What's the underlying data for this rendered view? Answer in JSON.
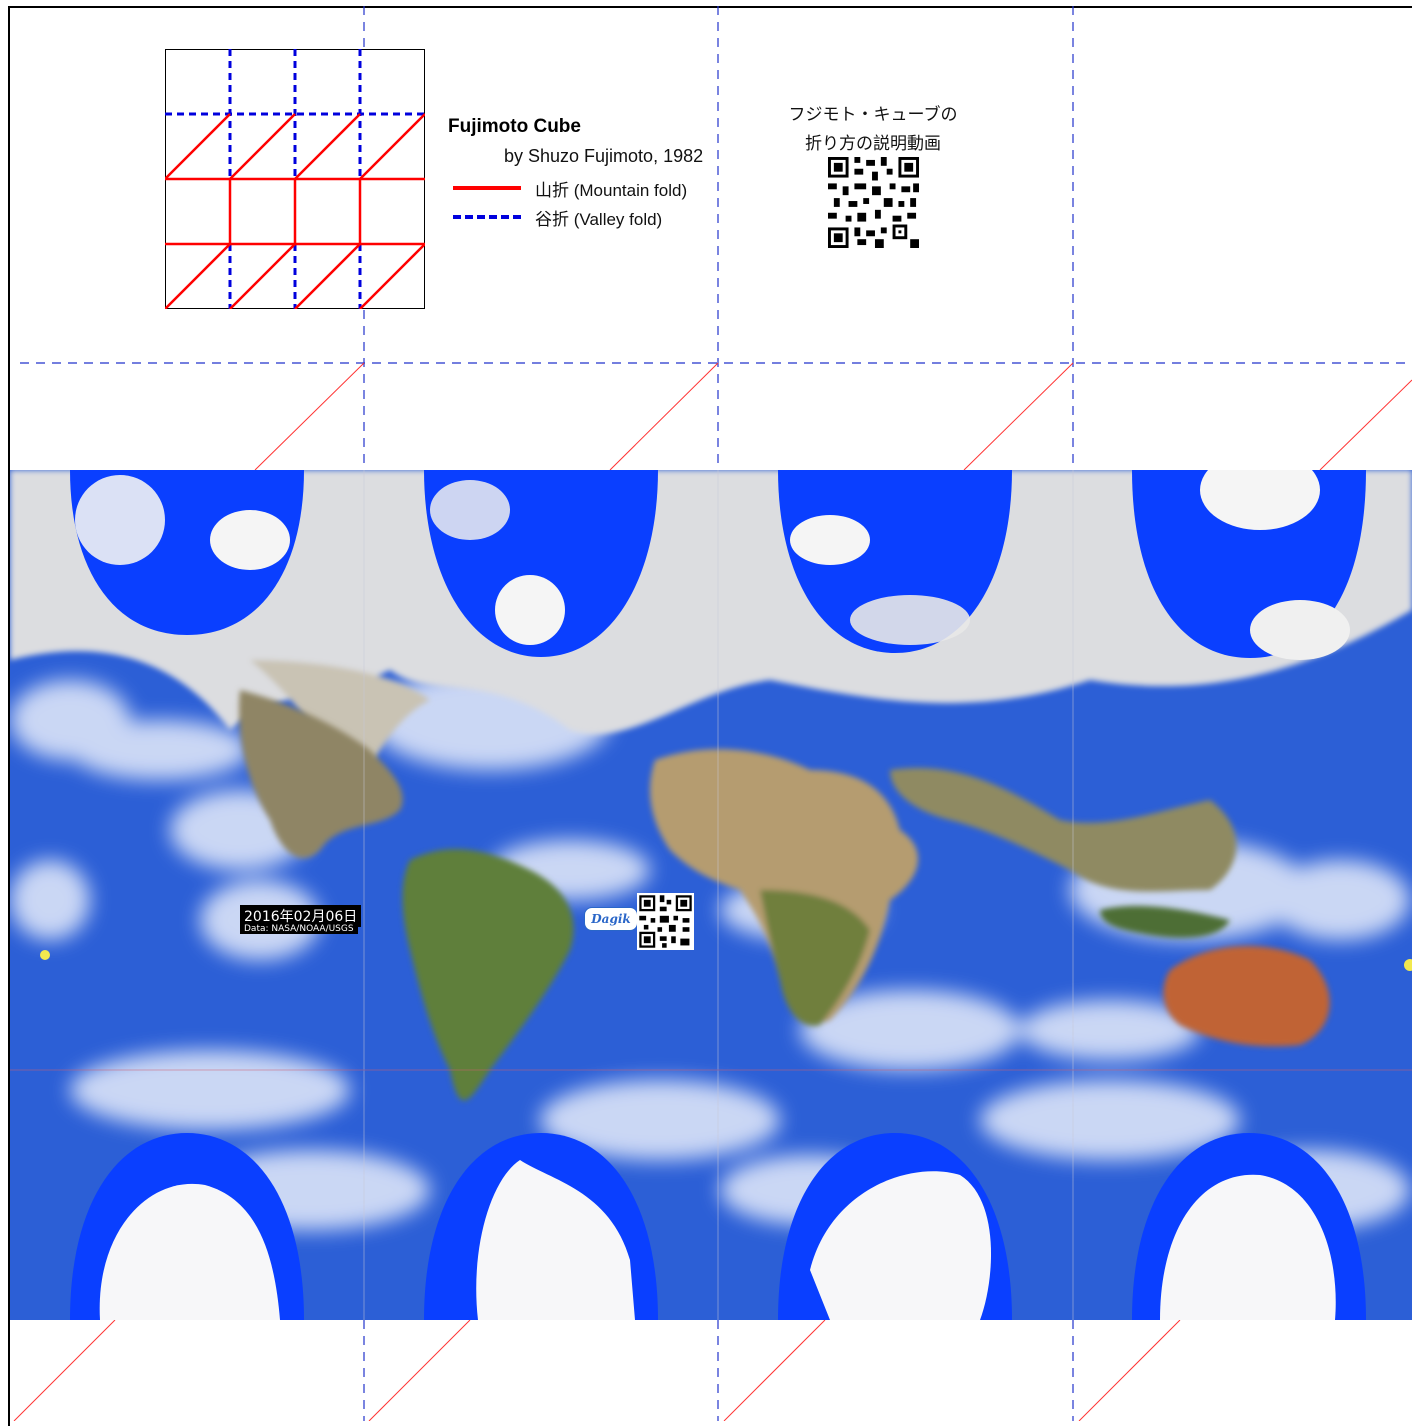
{
  "legend": {
    "title": "Fujimoto Cube",
    "byline": "by Shuzo Fujimoto, 1982",
    "mountain_label": "山折 (Mountain fold)",
    "valley_label": "谷折 (Valley fold)",
    "mountain_color": "#ff0000",
    "valley_color": "#0000dd"
  },
  "video": {
    "line1": "フジモト・キューブの",
    "line2": "折り方の説明動画",
    "qr_icon": "qr-code-icon"
  },
  "map": {
    "date": "2016年02月06日",
    "credit": "Data: NASA/NOAA/USGS",
    "logo_text": "Dagik",
    "ocean_color": "#2c5fd6",
    "polar_color": "#0a3fff",
    "fold_line_color": "#ff3333",
    "guide_line_color": "#2233cc"
  }
}
